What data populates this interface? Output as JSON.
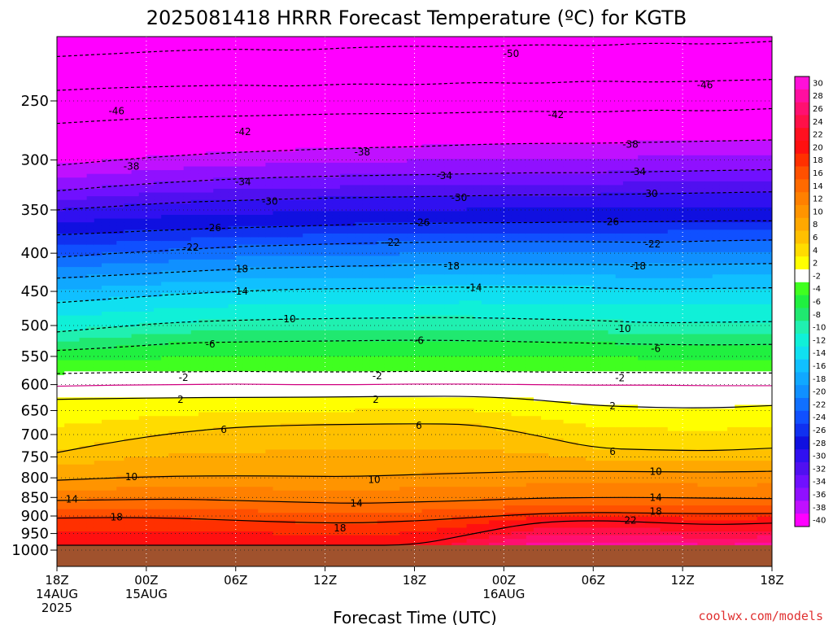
{
  "chart_data": {
    "type": "heatmap",
    "title": "2025081418 HRRR Forecast Temperature (ºC) for KGTB",
    "xlabel": "Forecast Time (UTC)",
    "ylabel": "",
    "credit": "coolwx.com/models",
    "x_ticks": [
      {
        "hour": 0,
        "lines": [
          "18Z",
          "14AUG",
          "2025"
        ]
      },
      {
        "hour": 6,
        "lines": [
          "00Z",
          "15AUG"
        ]
      },
      {
        "hour": 12,
        "lines": [
          "06Z"
        ]
      },
      {
        "hour": 18,
        "lines": [
          "12Z"
        ]
      },
      {
        "hour": 24,
        "lines": [
          "18Z"
        ]
      },
      {
        "hour": 30,
        "lines": [
          "00Z",
          "16AUG"
        ]
      },
      {
        "hour": 36,
        "lines": [
          "06Z"
        ]
      },
      {
        "hour": 42,
        "lines": [
          "12Z"
        ]
      },
      {
        "hour": 48,
        "lines": [
          "18Z"
        ]
      }
    ],
    "xlim": [
      0,
      48
    ],
    "y_axis_pressure_hPa": [
      250,
      300,
      350,
      400,
      450,
      500,
      550,
      600,
      650,
      700,
      750,
      800,
      850,
      900,
      950,
      1000
    ],
    "y_top_hPa": 200,
    "surface_pressure_hPa": 985,
    "colorbar": {
      "levels": [
        30,
        28,
        26,
        24,
        22,
        20,
        18,
        16,
        14,
        12,
        10,
        8,
        6,
        4,
        2,
        -2,
        -4,
        -6,
        -8,
        -10,
        -12,
        -14,
        -16,
        -18,
        -20,
        -22,
        -24,
        -26,
        -28,
        -30,
        -32,
        -34,
        -36,
        -38,
        -40
      ],
      "colors": [
        "#ff10d8",
        "#ff0fa0",
        "#ff1070",
        "#ff1048",
        "#ff1020",
        "#ff1010",
        "#ff3000",
        "#ff5000",
        "#ff6a00",
        "#ff8000",
        "#ff9400",
        "#ffa800",
        "#ffc000",
        "#ffdc00",
        "#ffff00",
        "#ffffff",
        "#40ff20",
        "#20f040",
        "#20e870",
        "#20f0b0",
        "#10f0d8",
        "#10e0f0",
        "#10c0ff",
        "#10a8ff",
        "#1090ff",
        "#1070ff",
        "#1050ff",
        "#1030f0",
        "#1010e0",
        "#3010f0",
        "#5010f0",
        "#7010ff",
        "#9010ff",
        "#c010ff",
        "#ff00ff"
      ]
    },
    "series": [
      {
        "value": -50,
        "pressure_hPa": [
          218,
          216,
          214,
          213,
          214,
          212,
          211,
          212,
          210,
          211,
          209,
          210,
          208
        ]
      },
      {
        "value": -46,
        "pressure_hPa": [
          242,
          240,
          239,
          238,
          239,
          237,
          238,
          236,
          237,
          235,
          236,
          235,
          234
        ]
      },
      {
        "value": -42,
        "pressure_hPa": [
          268,
          265,
          263,
          262,
          261,
          260,
          260,
          259,
          258,
          259,
          257,
          258,
          256
        ]
      },
      {
        "value": -38,
        "pressure_hPa": [
          305,
          300,
          296,
          293,
          291,
          289,
          288,
          286,
          285,
          285,
          284,
          283,
          282
        ]
      },
      {
        "value": -34,
        "pressure_hPa": [
          330,
          325,
          321,
          318,
          316,
          315,
          314,
          313,
          312,
          312,
          311,
          310,
          309
        ]
      },
      {
        "value": -30,
        "pressure_hPa": [
          350,
          346,
          342,
          340,
          338,
          337,
          336,
          335,
          334,
          334,
          333,
          332,
          331
        ]
      },
      {
        "value": -26,
        "pressure_hPa": [
          378,
          375,
          372,
          370,
          368,
          366,
          365,
          364,
          364,
          363,
          363,
          362,
          362
        ]
      },
      {
        "value": -22,
        "pressure_hPa": [
          405,
          400,
          396,
          392,
          390,
          388,
          387,
          386,
          386,
          386,
          387,
          385,
          384
        ]
      },
      {
        "value": -18,
        "pressure_hPa": [
          432,
          428,
          424,
          420,
          418,
          416,
          415,
          414,
          414,
          414,
          415,
          414,
          413
        ]
      },
      {
        "value": -14,
        "pressure_hPa": [
          466,
          460,
          454,
          450,
          447,
          446,
          445,
          444,
          444,
          445,
          447,
          446,
          445
        ]
      },
      {
        "value": -10,
        "pressure_hPa": [
          510,
          502,
          495,
          492,
          490,
          489,
          488,
          488,
          490,
          492,
          496,
          495,
          494
        ]
      },
      {
        "value": -6,
        "pressure_hPa": [
          540,
          535,
          528,
          526,
          525,
          524,
          523,
          524,
          526,
          528,
          530,
          531,
          530
        ]
      },
      {
        "value": -2,
        "pressure_hPa": [
          580,
          578,
          577,
          576,
          577,
          577,
          576,
          576,
          577,
          578,
          578,
          579,
          579
        ]
      },
      {
        "value": 2,
        "pressure_hPa": [
          628,
          626,
          625,
          624,
          624,
          623,
          622,
          622,
          628,
          640,
          644,
          645,
          640
        ]
      },
      {
        "value": 6,
        "pressure_hPa": [
          740,
          715,
          696,
          684,
          680,
          678,
          677,
          678,
          700,
          730,
          734,
          736,
          730
        ]
      },
      {
        "value": 10,
        "pressure_hPa": [
          806,
          800,
          796,
          795,
          796,
          797,
          792,
          788,
          784,
          784,
          785,
          786,
          784
        ]
      },
      {
        "value": 14,
        "pressure_hPa": [
          858,
          856,
          854,
          858,
          862,
          866,
          862,
          858,
          852,
          850,
          850,
          852,
          853
        ]
      },
      {
        "value": 18,
        "pressure_hPa": [
          906,
          904,
          906,
          912,
          918,
          920,
          914,
          904,
          894,
          890,
          892,
          894,
          893
        ]
      },
      {
        "value": 22,
        "pressure_hPa": [
          985,
          985,
          985,
          985,
          985,
          985,
          985,
          950,
          918,
          912,
          918,
          925,
          920
        ]
      }
    ],
    "series_hours": [
      0,
      4,
      8,
      12,
      16,
      20,
      24,
      28,
      32,
      36,
      40,
      44,
      48
    ],
    "contour_labels": [
      {
        "value": -50,
        "hour": 30.5,
        "p": 216
      },
      {
        "value": -46,
        "hour": 4,
        "p": 258
      },
      {
        "value": -46,
        "hour": 43.5,
        "p": 238
      },
      {
        "value": -42,
        "hour": 12.5,
        "p": 275
      },
      {
        "value": -42,
        "hour": 33.5,
        "p": 261
      },
      {
        "value": -38,
        "hour": 5,
        "p": 306
      },
      {
        "value": -38,
        "hour": 20.5,
        "p": 293
      },
      {
        "value": -38,
        "hour": 38.5,
        "p": 286
      },
      {
        "value": -34,
        "hour": 12.5,
        "p": 321
      },
      {
        "value": -34,
        "hour": 26,
        "p": 315
      },
      {
        "value": -34,
        "hour": 39,
        "p": 311
      },
      {
        "value": -30,
        "hour": 14.3,
        "p": 341
      },
      {
        "value": -30,
        "hour": 27,
        "p": 337
      },
      {
        "value": -30,
        "hour": 39.8,
        "p": 333
      },
      {
        "value": -26,
        "hour": 10.5,
        "p": 370
      },
      {
        "value": -26,
        "hour": 24.5,
        "p": 364
      },
      {
        "value": -26,
        "hour": 37.2,
        "p": 363
      },
      {
        "value": -22,
        "hour": 9,
        "p": 393
      },
      {
        "value": -22,
        "hour": 22.5,
        "p": 387
      },
      {
        "value": -22,
        "hour": 40,
        "p": 389
      },
      {
        "value": -18,
        "hour": 12.3,
        "p": 420
      },
      {
        "value": -18,
        "hour": 26.5,
        "p": 416
      },
      {
        "value": -18,
        "hour": 39,
        "p": 416
      },
      {
        "value": -14,
        "hour": 12.3,
        "p": 450
      },
      {
        "value": -14,
        "hour": 28,
        "p": 445
      },
      {
        "value": -10,
        "hour": 15.5,
        "p": 490
      },
      {
        "value": -10,
        "hour": 38,
        "p": 505
      },
      {
        "value": -6,
        "hour": 10.3,
        "p": 530
      },
      {
        "value": -6,
        "hour": 24.3,
        "p": 524
      },
      {
        "value": -6,
        "hour": 40.2,
        "p": 537
      },
      {
        "value": -2,
        "hour": 8.5,
        "p": 587
      },
      {
        "value": -2,
        "hour": 21.5,
        "p": 584
      },
      {
        "value": -2,
        "hour": 37.8,
        "p": 588
      },
      {
        "value": 2,
        "hour": 8.3,
        "p": 628
      },
      {
        "value": 2,
        "hour": 21.4,
        "p": 628
      },
      {
        "value": 2,
        "hour": 37.3,
        "p": 641
      },
      {
        "value": 6,
        "hour": 11.2,
        "p": 690
      },
      {
        "value": 6,
        "hour": 24.3,
        "p": 681
      },
      {
        "value": 6,
        "hour": 37.3,
        "p": 738
      },
      {
        "value": 10,
        "hour": 5,
        "p": 798
      },
      {
        "value": 10,
        "hour": 21.3,
        "p": 805
      },
      {
        "value": 10,
        "hour": 40.2,
        "p": 785
      },
      {
        "value": 14,
        "hour": 1,
        "p": 855
      },
      {
        "value": 14,
        "hour": 20.1,
        "p": 865
      },
      {
        "value": 14,
        "hour": 40.2,
        "p": 850
      },
      {
        "value": 18,
        "hour": 4,
        "p": 903
      },
      {
        "value": 18,
        "hour": 19,
        "p": 934
      },
      {
        "value": 18,
        "hour": 40.2,
        "p": 888
      },
      {
        "value": 22,
        "hour": 38.5,
        "p": 912
      }
    ]
  }
}
